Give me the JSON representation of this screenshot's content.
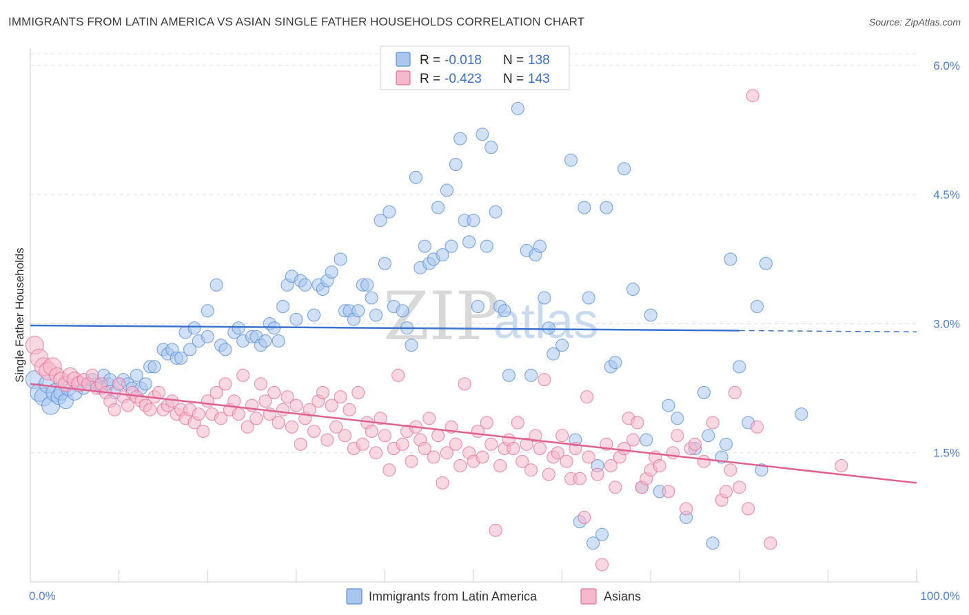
{
  "title": "IMMIGRANTS FROM LATIN AMERICA VS ASIAN SINGLE FATHER HOUSEHOLDS CORRELATION CHART",
  "source": "Source: ZipAtlas.com",
  "watermark": {
    "zip": "ZIP",
    "atlas": "atlas"
  },
  "colors": {
    "blue": "#5b8fd9",
    "blue_fill": "#a9c6ee",
    "pink": "#e8709a",
    "pink_fill": "#f5b8cb",
    "tick": "#4a7fd4"
  },
  "legend": {
    "rows": [
      {
        "r_label": "R =",
        "r_value": "-0.018",
        "n_label": "N =",
        "n_value": "138"
      },
      {
        "r_label": "R =",
        "r_value": "-0.423",
        "n_label": "N =",
        "n_value": "143"
      }
    ]
  },
  "bottom_legend": [
    "Immigrants from Latin America",
    "Asians"
  ],
  "chart_data": {
    "type": "scatter",
    "title": "IMMIGRANTS FROM LATIN AMERICA VS ASIAN SINGLE FATHER HOUSEHOLDS CORRELATION CHART",
    "xlabel": "",
    "ylabel": "Single Father Households",
    "xlim": [
      0,
      100
    ],
    "ylim": [
      0,
      6.2
    ],
    "x_tick_labels": [
      "0.0%",
      "100.0%"
    ],
    "y_ticks": [
      1.5,
      3.0,
      4.5,
      6.0
    ],
    "y_tick_labels": [
      "1.5%",
      "3.0%",
      "4.5%",
      "6.0%"
    ],
    "series": [
      {
        "name": "Immigrants from Latin America",
        "r": -0.018,
        "n": 138,
        "trend": {
          "x0": 0,
          "y0": 2.98,
          "x1": 80,
          "y1": 2.92,
          "dash_to": 100
        },
        "points": [
          [
            0.5,
            2.35
          ],
          [
            1,
            2.2
          ],
          [
            1.5,
            2.15
          ],
          [
            2,
            2.3
          ],
          [
            2.3,
            2.05
          ],
          [
            2.8,
            2.2
          ],
          [
            3.2,
            2.15
          ],
          [
            3.5,
            2.2
          ],
          [
            4,
            2.1
          ],
          [
            4.3,
            2.25
          ],
          [
            5,
            2.2
          ],
          [
            5.5,
            2.3
          ],
          [
            6,
            2.25
          ],
          [
            6.5,
            2.3
          ],
          [
            7,
            2.35
          ],
          [
            7.5,
            2.3
          ],
          [
            8,
            2.25
          ],
          [
            8.3,
            2.4
          ],
          [
            8.8,
            2.3
          ],
          [
            9,
            2.35
          ],
          [
            9.5,
            2.2
          ],
          [
            10,
            2.3
          ],
          [
            10.5,
            2.35
          ],
          [
            11,
            2.3
          ],
          [
            11.5,
            2.25
          ],
          [
            12,
            2.4
          ],
          [
            12.5,
            2.25
          ],
          [
            13,
            2.3
          ],
          [
            13.5,
            2.5
          ],
          [
            14,
            2.5
          ],
          [
            15,
            2.7
          ],
          [
            15.5,
            2.65
          ],
          [
            16,
            2.7
          ],
          [
            16.5,
            2.6
          ],
          [
            17,
            2.6
          ],
          [
            17.5,
            2.9
          ],
          [
            18,
            2.7
          ],
          [
            18.5,
            2.95
          ],
          [
            19,
            2.8
          ],
          [
            20,
            3.15
          ],
          [
            20,
            2.85
          ],
          [
            21,
            3.45
          ],
          [
            21.5,
            2.75
          ],
          [
            22,
            2.7
          ],
          [
            23,
            2.9
          ],
          [
            23.5,
            2.95
          ],
          [
            24,
            2.8
          ],
          [
            25,
            2.85
          ],
          [
            25.5,
            2.85
          ],
          [
            26,
            2.75
          ],
          [
            26.5,
            2.8
          ],
          [
            27,
            3.0
          ],
          [
            27.5,
            2.95
          ],
          [
            28,
            2.8
          ],
          [
            28.5,
            3.2
          ],
          [
            29,
            3.45
          ],
          [
            29.5,
            3.55
          ],
          [
            30,
            3.05
          ],
          [
            30.5,
            3.5
          ],
          [
            31,
            3.45
          ],
          [
            32,
            3.1
          ],
          [
            32.5,
            3.45
          ],
          [
            33,
            3.4
          ],
          [
            33.5,
            3.5
          ],
          [
            34,
            3.6
          ],
          [
            35,
            3.75
          ],
          [
            35.5,
            3.15
          ],
          [
            36,
            3.15
          ],
          [
            36.5,
            3.05
          ],
          [
            37,
            3.15
          ],
          [
            37.5,
            3.45
          ],
          [
            38,
            3.45
          ],
          [
            38.5,
            3.3
          ],
          [
            39,
            3.1
          ],
          [
            39.5,
            4.2
          ],
          [
            40,
            3.7
          ],
          [
            40.5,
            4.3
          ],
          [
            41,
            3.2
          ],
          [
            42,
            3.15
          ],
          [
            42.5,
            2.95
          ],
          [
            43,
            2.75
          ],
          [
            43.5,
            4.7
          ],
          [
            44,
            3.65
          ],
          [
            44.5,
            3.9
          ],
          [
            45,
            3.7
          ],
          [
            45.5,
            3.75
          ],
          [
            46,
            4.35
          ],
          [
            46.5,
            3.8
          ],
          [
            47,
            4.55
          ],
          [
            47.5,
            3.9
          ],
          [
            48,
            4.85
          ],
          [
            48.5,
            5.15
          ],
          [
            49,
            4.2
          ],
          [
            49.5,
            3.95
          ],
          [
            50,
            4.2
          ],
          [
            50.5,
            3.2
          ],
          [
            51,
            5.2
          ],
          [
            51.5,
            3.9
          ],
          [
            52,
            5.05
          ],
          [
            52.5,
            4.3
          ],
          [
            53,
            3.2
          ],
          [
            53.5,
            3.15
          ],
          [
            54,
            2.4
          ],
          [
            55,
            5.5
          ],
          [
            56,
            3.85
          ],
          [
            56.5,
            2.4
          ],
          [
            57,
            3.8
          ],
          [
            57.5,
            3.9
          ],
          [
            58,
            3.3
          ],
          [
            58.5,
            2.95
          ],
          [
            59,
            2.65
          ],
          [
            60,
            2.75
          ],
          [
            61,
            4.9
          ],
          [
            61.5,
            1.65
          ],
          [
            62,
            0.7
          ],
          [
            62.5,
            4.35
          ],
          [
            63,
            3.3
          ],
          [
            63.5,
            0.45
          ],
          [
            64,
            1.35
          ],
          [
            64.5,
            0.55
          ],
          [
            65,
            4.35
          ],
          [
            65.5,
            2.5
          ],
          [
            66,
            2.55
          ],
          [
            67,
            4.8
          ],
          [
            68,
            3.4
          ],
          [
            69,
            1.1
          ],
          [
            69.5,
            1.65
          ],
          [
            70,
            3.1
          ],
          [
            71,
            1.05
          ],
          [
            72,
            2.05
          ],
          [
            73,
            1.9
          ],
          [
            74,
            0.75
          ],
          [
            75,
            1.55
          ],
          [
            76,
            2.2
          ],
          [
            76.5,
            1.7
          ],
          [
            77,
            0.45
          ],
          [
            78,
            1.45
          ],
          [
            78.5,
            1.6
          ],
          [
            79,
            3.75
          ],
          [
            80,
            2.5
          ],
          [
            81,
            1.85
          ],
          [
            82,
            3.2
          ],
          [
            82.5,
            1.3
          ],
          [
            83,
            3.7
          ],
          [
            87,
            1.95
          ]
        ]
      },
      {
        "name": "Asians",
        "r": -0.423,
        "n": 143,
        "trend": {
          "x0": 0,
          "y0": 2.3,
          "x1": 100,
          "y1": 1.15
        },
        "points": [
          [
            0.5,
            2.75
          ],
          [
            1,
            2.6
          ],
          [
            1.5,
            2.5
          ],
          [
            2,
            2.45
          ],
          [
            2.5,
            2.5
          ],
          [
            3,
            2.4
          ],
          [
            3.5,
            2.35
          ],
          [
            4,
            2.3
          ],
          [
            4.5,
            2.4
          ],
          [
            5,
            2.35
          ],
          [
            5.5,
            2.3
          ],
          [
            6,
            2.35
          ],
          [
            6.5,
            2.3
          ],
          [
            7,
            2.4
          ],
          [
            7.5,
            2.25
          ],
          [
            8,
            2.3
          ],
          [
            8.5,
            2.2
          ],
          [
            9,
            2.1
          ],
          [
            9.5,
            2.0
          ],
          [
            10,
            2.3
          ],
          [
            10.5,
            2.15
          ],
          [
            11,
            2.05
          ],
          [
            11.5,
            2.2
          ],
          [
            12,
            2.15
          ],
          [
            12.5,
            2.1
          ],
          [
            13,
            2.05
          ],
          [
            13.5,
            2.0
          ],
          [
            14,
            2.15
          ],
          [
            14.5,
            2.2
          ],
          [
            15,
            2.0
          ],
          [
            15.5,
            2.05
          ],
          [
            16,
            2.1
          ],
          [
            16.5,
            1.95
          ],
          [
            17,
            2.0
          ],
          [
            17.5,
            1.9
          ],
          [
            18,
            2.0
          ],
          [
            18.5,
            1.85
          ],
          [
            19,
            1.95
          ],
          [
            19.5,
            1.75
          ],
          [
            20,
            2.1
          ],
          [
            20.5,
            1.95
          ],
          [
            21,
            2.2
          ],
          [
            21.5,
            1.9
          ],
          [
            22,
            2.3
          ],
          [
            22.5,
            2.0
          ],
          [
            23,
            2.1
          ],
          [
            23.5,
            1.95
          ],
          [
            24,
            2.4
          ],
          [
            24.5,
            1.8
          ],
          [
            25,
            2.05
          ],
          [
            25.5,
            1.9
          ],
          [
            26,
            2.3
          ],
          [
            26.5,
            2.1
          ],
          [
            27,
            1.95
          ],
          [
            27.5,
            2.2
          ],
          [
            28,
            1.85
          ],
          [
            28.5,
            2.0
          ],
          [
            29,
            2.15
          ],
          [
            29.5,
            1.8
          ],
          [
            30,
            2.05
          ],
          [
            30.5,
            1.6
          ],
          [
            31,
            1.9
          ],
          [
            31.5,
            2.0
          ],
          [
            32,
            1.75
          ],
          [
            32.5,
            2.1
          ],
          [
            33,
            2.2
          ],
          [
            33.5,
            1.65
          ],
          [
            34,
            2.05
          ],
          [
            34.5,
            1.8
          ],
          [
            35,
            2.15
          ],
          [
            35.5,
            1.7
          ],
          [
            36,
            2.0
          ],
          [
            36.5,
            1.55
          ],
          [
            37,
            2.2
          ],
          [
            37.5,
            1.6
          ],
          [
            38,
            1.85
          ],
          [
            38.5,
            1.75
          ],
          [
            39,
            1.5
          ],
          [
            39.5,
            1.9
          ],
          [
            40,
            1.7
          ],
          [
            40.5,
            1.3
          ],
          [
            41,
            1.55
          ],
          [
            41.5,
            2.4
          ],
          [
            42,
            1.6
          ],
          [
            42.5,
            1.75
          ],
          [
            43,
            1.4
          ],
          [
            43.5,
            1.8
          ],
          [
            44,
            1.65
          ],
          [
            44.5,
            1.55
          ],
          [
            45,
            1.9
          ],
          [
            45.5,
            1.45
          ],
          [
            46,
            1.7
          ],
          [
            46.5,
            1.15
          ],
          [
            47,
            1.5
          ],
          [
            47.5,
            1.8
          ],
          [
            48,
            1.6
          ],
          [
            48.5,
            1.35
          ],
          [
            49,
            2.3
          ],
          [
            49.5,
            1.5
          ],
          [
            50,
            1.4
          ],
          [
            50.5,
            1.75
          ],
          [
            51,
            1.45
          ],
          [
            51.5,
            1.85
          ],
          [
            52,
            1.6
          ],
          [
            52.5,
            0.6
          ],
          [
            53,
            1.35
          ],
          [
            53.5,
            1.55
          ],
          [
            54,
            1.65
          ],
          [
            54.5,
            1.55
          ],
          [
            55,
            1.85
          ],
          [
            55.5,
            1.4
          ],
          [
            56,
            1.6
          ],
          [
            56.5,
            1.3
          ],
          [
            57,
            1.7
          ],
          [
            57.5,
            1.55
          ],
          [
            58,
            2.35
          ],
          [
            58.5,
            1.25
          ],
          [
            59,
            1.45
          ],
          [
            59.5,
            1.5
          ],
          [
            60,
            1.7
          ],
          [
            60.5,
            1.4
          ],
          [
            61,
            1.2
          ],
          [
            61.5,
            1.55
          ],
          [
            62,
            1.2
          ],
          [
            62.5,
            0.75
          ],
          [
            63,
            1.45
          ],
          [
            64,
            1.25
          ],
          [
            64.5,
            0.2
          ],
          [
            65,
            1.6
          ],
          [
            65.5,
            1.35
          ],
          [
            66,
            1.1
          ],
          [
            66.5,
            1.45
          ],
          [
            67,
            1.55
          ],
          [
            67.5,
            1.9
          ],
          [
            68,
            1.65
          ],
          [
            68.5,
            1.85
          ],
          [
            69,
            1.1
          ],
          [
            69.5,
            1.2
          ],
          [
            70,
            1.3
          ],
          [
            70.5,
            1.45
          ],
          [
            71,
            1.35
          ],
          [
            72,
            1.05
          ],
          [
            72.5,
            1.5
          ],
          [
            73,
            1.7
          ],
          [
            74,
            0.85
          ],
          [
            74.5,
            1.55
          ],
          [
            75,
            1.6
          ],
          [
            76,
            1.4
          ],
          [
            77,
            1.85
          ],
          [
            78,
            0.95
          ],
          [
            78.5,
            1.05
          ],
          [
            79,
            1.3
          ],
          [
            80,
            1.1
          ],
          [
            81,
            0.85
          ],
          [
            82,
            1.8
          ],
          [
            83.5,
            0.45
          ],
          [
            91.5,
            1.35
          ],
          [
            79.5,
            2.2
          ],
          [
            62.8,
            2.15
          ],
          [
            81.5,
            5.65
          ]
        ]
      }
    ]
  }
}
